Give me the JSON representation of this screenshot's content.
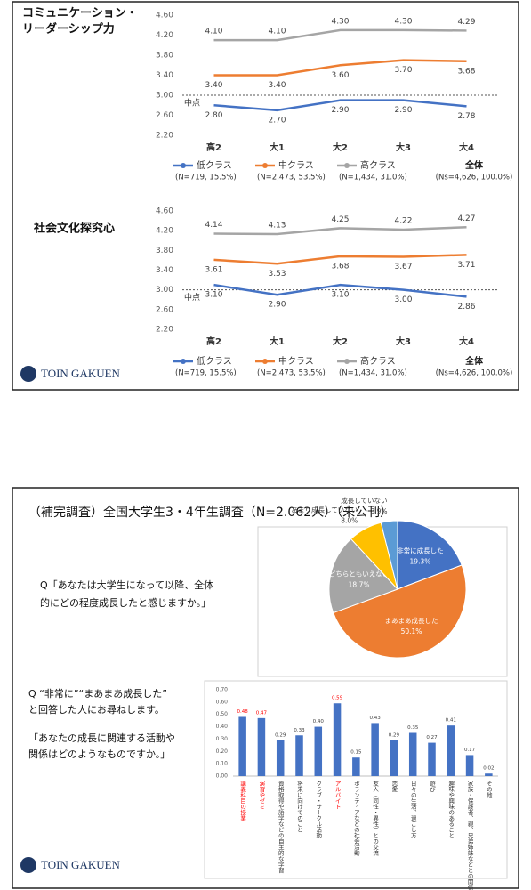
{
  "slides": [
    {
      "logo": "TOIN GAKUEN"
    },
    {
      "title": "（補完調査）全国大学生3・4年生調査（N=2.062人）（未公刊）",
      "pie_question": [
        "Q「あなたは大学生になって以降、全体",
        "的にどの程度成長したと感じますか。」"
      ],
      "bar_question": [
        "Q “非常に”“まあまあ成長した”",
        "と回答した人にお尋ねします。",
        "「あなたの成長に関連する活動や",
        "関係はどのようなものですか。」"
      ],
      "logo": "TOIN GAKUEN"
    }
  ],
  "chart_data": [
    {
      "type": "line",
      "title": [
        "コミュニケーション・",
        "リーダーシップ力"
      ],
      "categories": [
        "高2",
        "大1",
        "大2",
        "大3",
        "大4"
      ],
      "series": [
        {
          "name": "低クラス",
          "note": "(N=719, 15.5%)",
          "color": "#4472c4",
          "values": [
            2.8,
            2.7,
            2.9,
            2.9,
            2.78
          ],
          "value_labels": [
            "2.80",
            "2.70",
            "2.90",
            "2.90",
            "2.78"
          ]
        },
        {
          "name": "中クラス",
          "note": "(N=2,473, 53.5%)",
          "color": "#ed7d31",
          "values": [
            3.4,
            3.4,
            3.6,
            3.7,
            3.68
          ],
          "value_labels": [
            "3.40",
            "3.40",
            "3.60",
            "3.70",
            "3.68"
          ]
        },
        {
          "name": "高クラス",
          "note": "(N=1,434, 31.0%)",
          "color": "#a5a5a5",
          "values": [
            4.1,
            4.1,
            4.3,
            4.3,
            4.29
          ],
          "value_labels": [
            "4.10",
            "4.10",
            "4.30",
            "4.30",
            "4.29"
          ]
        }
      ],
      "total": {
        "name": "全体",
        "note": "(Ns=4,626, 100.0%)"
      },
      "midpoint": {
        "value": 3,
        "label": "中点"
      },
      "ylim": [
        2.2,
        4.6
      ],
      "yticks": [
        {
          "value": 2.2,
          "label": "2.20"
        },
        {
          "value": 2.6,
          "label": "2.60"
        },
        {
          "value": 3,
          "label": "3.00"
        },
        {
          "value": 3.4,
          "label": "3.40"
        },
        {
          "value": 3.8,
          "label": "3.80"
        },
        {
          "value": 4.2,
          "label": "4.20"
        },
        {
          "value": 4.6,
          "label": "4.60"
        }
      ],
      "grid": false,
      "legend": "bottom"
    },
    {
      "type": "line",
      "title": [
        "社会文化探究心"
      ],
      "categories": [
        "高2",
        "大1",
        "大2",
        "大3",
        "大4"
      ],
      "series": [
        {
          "name": "低クラス",
          "note": "(N=719, 15.5%)",
          "color": "#4472c4",
          "values": [
            3.1,
            2.9,
            3.1,
            3,
            2.86
          ],
          "value_labels": [
            "3.10",
            "2.90",
            "3.10",
            "3.00",
            "2.86"
          ]
        },
        {
          "name": "中クラス",
          "note": "(N=2,473, 53.5%)",
          "color": "#ed7d31",
          "values": [
            3.61,
            3.53,
            3.68,
            3.67,
            3.71
          ],
          "value_labels": [
            "3.61",
            "3.53",
            "3.68",
            "3.67",
            "3.71"
          ]
        },
        {
          "name": "高クラス",
          "note": "(N=1,434, 31.0%)",
          "color": "#a5a5a5",
          "values": [
            4.14,
            4.13,
            4.25,
            4.22,
            4.27
          ],
          "value_labels": [
            "4.14",
            "4.13",
            "4.25",
            "4.22",
            "4.27"
          ]
        }
      ],
      "total": {
        "name": "全体",
        "note": "(Ns=4,626, 100.0%)"
      },
      "midpoint": {
        "value": 3,
        "label": "中点"
      },
      "ylim": [
        2.2,
        4.6
      ],
      "yticks": [
        {
          "value": 2.2,
          "label": "2.20"
        },
        {
          "value": 2.6,
          "label": "2.60"
        },
        {
          "value": 3,
          "label": "3.00"
        },
        {
          "value": 3.4,
          "label": "3.40"
        },
        {
          "value": 3.8,
          "label": "3.80"
        },
        {
          "value": 4.2,
          "label": "4.20"
        },
        {
          "value": 4.6,
          "label": "4.60"
        }
      ],
      "grid": false,
      "legend": "bottom"
    },
    {
      "type": "pie",
      "categories": [
        "非常に成長した",
        "まあまあ成長した",
        "どちらともいえない",
        "あまり成長していない",
        "成長していない"
      ],
      "values": [
        19.3,
        50.1,
        18.7,
        8,
        3.9
      ],
      "value_labels": [
        "19.3%",
        "50.1%",
        "18.7%",
        "8.0%",
        "3.9%"
      ],
      "colors": [
        "#4472c4",
        "#ed7d31",
        "#a5a5a5",
        "#ffc000",
        "#5b9bd5"
      ]
    },
    {
      "type": "bar",
      "categories": [
        "講義科目の授業",
        "演習やゼミ",
        "資格取得や語学などの自主的な学習",
        "将来に向けてのこと",
        "クラブ・サークル活動",
        "アルバイト",
        "ボランティアなどの社会活動",
        "友人（同性・異性）との交流",
        "恋愛",
        "日々の生活、過ごし方",
        "遊び",
        "趣味や興味のあること",
        "家族・保護者、親、兄弟姉妹などとの関係",
        "その他"
      ],
      "values": [
        0.48,
        0.47,
        0.29,
        0.33,
        0.4,
        0.59,
        0.15,
        0.43,
        0.29,
        0.35,
        0.27,
        0.41,
        0.17,
        0.02
      ],
      "value_labels": [
        "0.48",
        "0.47",
        "0.29",
        "0.33",
        "0.40",
        "0.59",
        "0.15",
        "0.43",
        "0.29",
        "0.35",
        "0.27",
        "0.41",
        "0.17",
        "0.02"
      ],
      "color": "#4472c4",
      "highlight": [
        0,
        1,
        5
      ],
      "highlight_color": "#ff0000",
      "ylim": [
        0,
        0.7
      ],
      "yticks": [
        {
          "value": 0,
          "label": "0.00"
        },
        {
          "value": 0.1,
          "label": "0.10"
        },
        {
          "value": 0.2,
          "label": "0.20"
        },
        {
          "value": 0.3,
          "label": "0.30"
        },
        {
          "value": 0.4,
          "label": "0.40"
        },
        {
          "value": 0.5,
          "label": "0.50"
        },
        {
          "value": 0.6,
          "label": "0.60"
        },
        {
          "value": 0.7,
          "label": "0.70"
        }
      ],
      "grid": false
    }
  ]
}
